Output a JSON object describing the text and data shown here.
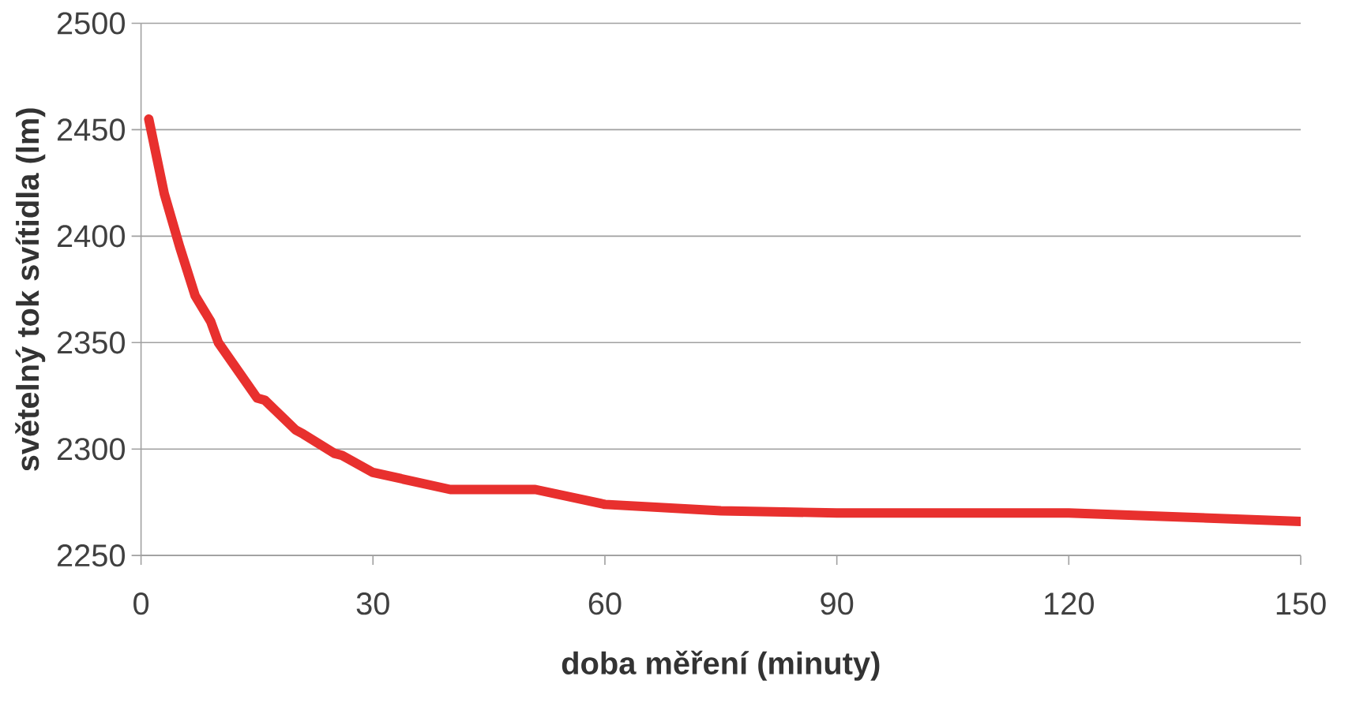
{
  "chart_data": {
    "type": "line",
    "xlabel": "doba měření (minuty)",
    "ylabel": "světelný tok svítidla (lm)",
    "xlim": [
      0,
      150
    ],
    "xticks": [
      0,
      30,
      60,
      90,
      120,
      150
    ],
    "ylim": [
      2250,
      2500
    ],
    "yticks": [
      2250,
      2300,
      2350,
      2400,
      2450,
      2500
    ],
    "grid": "y",
    "line_style": "solid",
    "series": [
      {
        "color": "#e8302e",
        "x": [
          1,
          3,
          5,
          7,
          9,
          10,
          15,
          16,
          20,
          21,
          25,
          26,
          30,
          40,
          51,
          60,
          75,
          90,
          120,
          150
        ],
        "values": [
          2455,
          2420,
          2395,
          2372,
          2360,
          2350,
          2324,
          2323,
          2309,
          2307,
          2298,
          2297,
          2289,
          2281,
          2281,
          2274,
          2271,
          2270,
          2270,
          2266
        ]
      }
    ]
  }
}
